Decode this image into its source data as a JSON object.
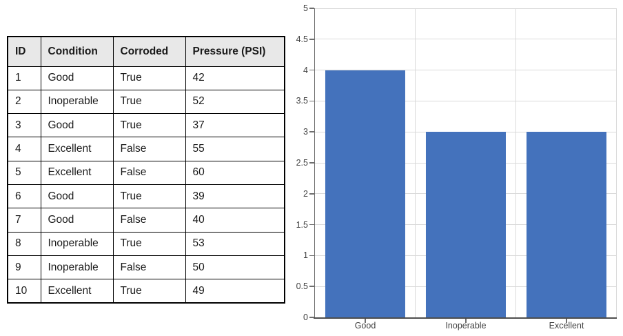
{
  "table": {
    "headers": [
      "ID",
      "Condition",
      "Corroded",
      "Pressure (PSI)"
    ],
    "rows": [
      [
        "1",
        "Good",
        "True",
        "42"
      ],
      [
        "2",
        "Inoperable",
        "True",
        "52"
      ],
      [
        "3",
        "Good",
        "True",
        "37"
      ],
      [
        "4",
        "Excellent",
        "False",
        "55"
      ],
      [
        "5",
        "Excellent",
        "False",
        "60"
      ],
      [
        "6",
        "Good",
        "True",
        "39"
      ],
      [
        "7",
        "Good",
        "False",
        "40"
      ],
      [
        "8",
        "Inoperable",
        "True",
        "53"
      ],
      [
        "9",
        "Inoperable",
        "False",
        "50"
      ],
      [
        "10",
        "Excellent",
        "True",
        "49"
      ]
    ],
    "header_bg": "#E8E8E8",
    "border_color": "#000000"
  },
  "chart_data": {
    "type": "bar",
    "title": "",
    "categories": [
      "Good",
      "Inoperable",
      "Excellent"
    ],
    "values": [
      4,
      3,
      3
    ],
    "xlabel": "",
    "ylabel": "",
    "ylim": [
      0,
      5
    ],
    "y_tick_step": 0.5,
    "y_ticks": [
      "5",
      "4.5",
      "4",
      "3.5",
      "3",
      "2.5",
      "2",
      "1.5",
      "1",
      "0.5",
      "0"
    ],
    "grid": true,
    "legend_position": "none",
    "bar_color": "#4472BC",
    "gridline_color": "#D9D9D9",
    "y_axis_color": "#6E6E6E",
    "x_axis_color": "#4D4D4D",
    "tick_label_color": "#404040"
  }
}
